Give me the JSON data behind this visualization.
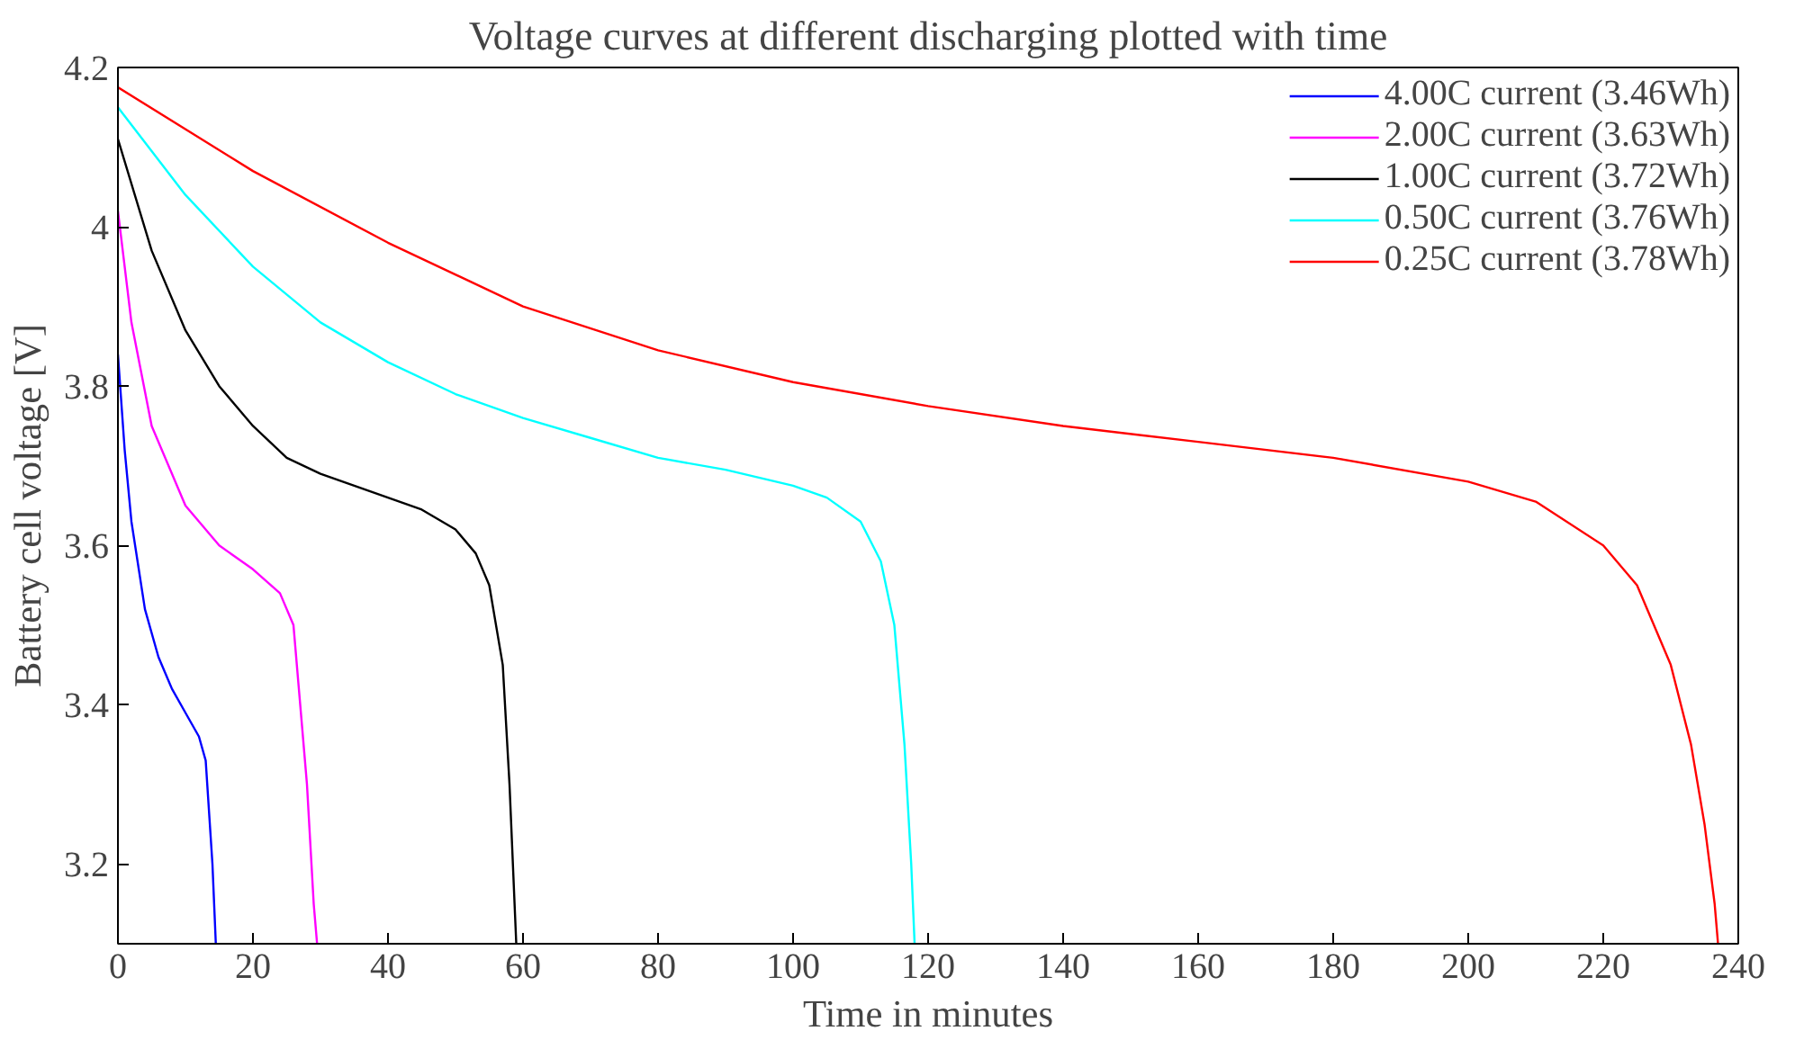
{
  "chart_data": {
    "type": "line",
    "title": "Voltage curves at different discharging plotted with time",
    "xlabel": "Time in minutes",
    "ylabel": "Battery cell voltage [V]",
    "xlim": [
      0,
      240
    ],
    "ylim": [
      3.1,
      4.2
    ],
    "xticks": [
      0,
      20,
      40,
      60,
      80,
      100,
      120,
      140,
      160,
      180,
      200,
      220,
      240
    ],
    "yticks": [
      3.2,
      3.4,
      3.6,
      3.8,
      4,
      4.2
    ],
    "grid": false,
    "legend": "top right",
    "marker": "none",
    "line_style": "solid",
    "series": [
      {
        "name": "4.00C current (3.46Wh)",
        "color": "#0000ff",
        "x": [
          0,
          1,
          2,
          4,
          6,
          8,
          10,
          12,
          13,
          14,
          14.5
        ],
        "values": [
          3.84,
          3.72,
          3.63,
          3.52,
          3.46,
          3.42,
          3.39,
          3.36,
          3.33,
          3.2,
          3.1
        ]
      },
      {
        "name": "2.00C current (3.63Wh)",
        "color": "#ff00ff",
        "x": [
          0,
          2,
          5,
          10,
          15,
          20,
          24,
          26,
          27,
          28,
          29,
          29.5
        ],
        "values": [
          4.02,
          3.88,
          3.75,
          3.65,
          3.6,
          3.57,
          3.54,
          3.5,
          3.4,
          3.3,
          3.15,
          3.1
        ]
      },
      {
        "name": "1.00C current (3.72Wh)",
        "color": "#000000",
        "x": [
          0,
          5,
          10,
          15,
          20,
          25,
          30,
          40,
          45,
          50,
          53,
          55,
          57,
          58,
          59
        ],
        "values": [
          4.11,
          3.97,
          3.87,
          3.8,
          3.75,
          3.71,
          3.69,
          3.66,
          3.645,
          3.62,
          3.59,
          3.55,
          3.45,
          3.3,
          3.1
        ]
      },
      {
        "name": "0.50C current (3.76Wh)",
        "color": "#00ffff",
        "x": [
          0,
          10,
          20,
          30,
          40,
          50,
          60,
          70,
          80,
          90,
          100,
          105,
          110,
          113,
          115,
          116.5,
          117.5,
          118
        ],
        "values": [
          4.15,
          4.04,
          3.95,
          3.88,
          3.83,
          3.79,
          3.76,
          3.735,
          3.71,
          3.695,
          3.675,
          3.66,
          3.63,
          3.58,
          3.5,
          3.35,
          3.2,
          3.1
        ]
      },
      {
        "name": "0.25C current (3.78Wh)",
        "color": "#ff0000",
        "x": [
          0,
          20,
          40,
          60,
          80,
          100,
          120,
          140,
          160,
          180,
          200,
          210,
          220,
          225,
          230,
          233,
          235,
          236.5,
          237
        ],
        "values": [
          4.175,
          4.07,
          3.98,
          3.9,
          3.845,
          3.805,
          3.775,
          3.75,
          3.73,
          3.71,
          3.68,
          3.655,
          3.6,
          3.55,
          3.45,
          3.35,
          3.25,
          3.15,
          3.1
        ]
      }
    ]
  }
}
